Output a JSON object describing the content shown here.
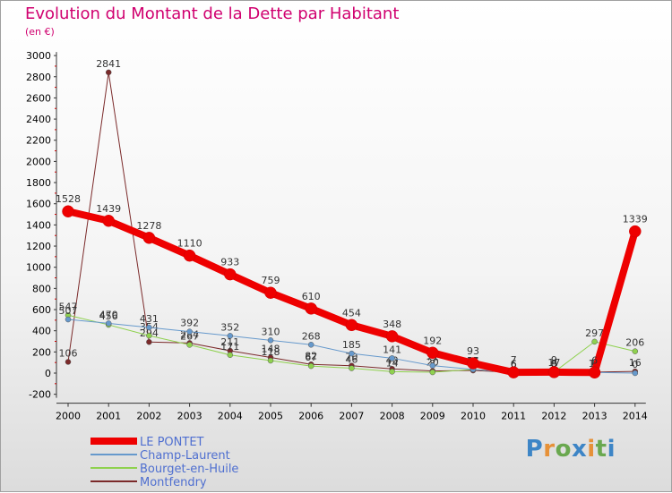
{
  "title": "Evolution du Montant de la Dette par Habitant",
  "subtitle": "(en €)",
  "logo": {
    "text": "Proxiti",
    "colors": [
      "#3d85c6",
      "#e69138",
      "#6aa84f",
      "#3d85c6",
      "#e69138",
      "#6aa84f",
      "#3d85c6"
    ]
  },
  "chart_data": {
    "type": "line",
    "title": "Evolution du Montant de la Dette par Habitant",
    "ylabel": "(en €)",
    "xlabel": "",
    "ylim": [
      -200,
      3000
    ],
    "yticks": [
      -200,
      0,
      200,
      400,
      600,
      800,
      1000,
      1200,
      1400,
      1600,
      1800,
      2000,
      2200,
      2400,
      2600,
      2800,
      3000
    ],
    "categories": [
      "2000",
      "2001",
      "2002",
      "2003",
      "2004",
      "2005",
      "2006",
      "2007",
      "2008",
      "2009",
      "2010",
      "2011",
      "2012",
      "2013",
      "2014"
    ],
    "legend_position": "bottom-left",
    "grid": false,
    "series": [
      {
        "name": "Montfendry",
        "color": "#7b2a2a",
        "width": 1,
        "values": [
          106,
          2841,
          294,
          284,
          211,
          148,
          82,
          70,
          40,
          20,
          25,
          6,
          17,
          10,
          16
        ]
      },
      {
        "name": "Bourget-en-Huile",
        "color": "#8fd14f",
        "width": 1,
        "values": [
          547,
          456,
          354,
          267,
          171,
          118,
          67,
          46,
          14,
          8,
          35,
          6,
          9,
          297,
          206
        ]
      },
      {
        "name": "Champ-Laurent",
        "color": "#6699cc",
        "width": 1,
        "values": [
          507,
          470,
          431,
          392,
          352,
          310,
          268,
          185,
          141,
          71,
          35,
          6,
          0,
          6,
          0
        ]
      },
      {
        "name": "LE PONTET",
        "color": "#ee0000",
        "width": 8,
        "values": [
          1528,
          1439,
          1278,
          1110,
          933,
          759,
          610,
          454,
          348,
          192,
          93,
          7,
          9,
          6,
          1339
        ]
      }
    ],
    "legend_order": [
      "LE PONTET",
      "Champ-Laurent",
      "Bourget-en-Huile",
      "Montfendry"
    ]
  }
}
